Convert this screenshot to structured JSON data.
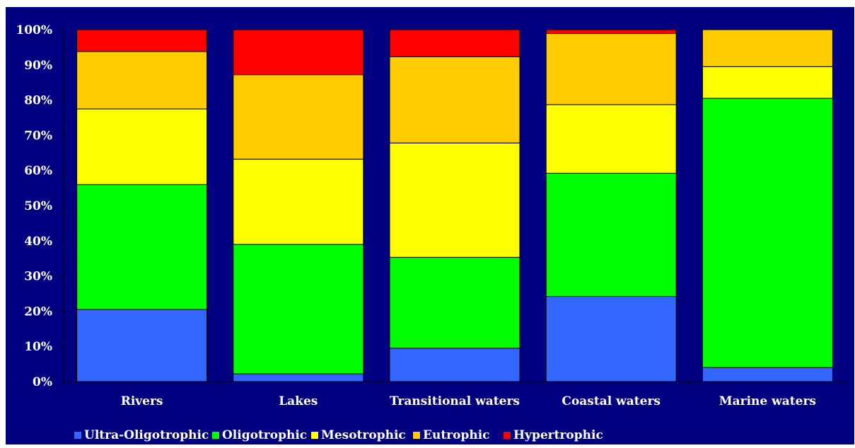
{
  "chart_data": {
    "type": "bar",
    "stacked": true,
    "normalized": true,
    "categories": [
      "Rivers",
      "Lakes",
      "Transitional waters",
      "Coastal waters",
      "Marine waters"
    ],
    "series": [
      {
        "name": "Ultra-Oligotrophic",
        "color": "#3366ff",
        "values": [
          20.5,
          2.2,
          9.5,
          24.2,
          4.0
        ]
      },
      {
        "name": "Oligotrophic",
        "color": "#00ff00",
        "values": [
          35.5,
          36.8,
          25.8,
          35.0,
          76.5
        ]
      },
      {
        "name": "Mesotrophic",
        "color": "#ffff00",
        "values": [
          21.5,
          24.2,
          32.5,
          19.5,
          9.0
        ]
      },
      {
        "name": "Eutrophic",
        "color": "#ffcc00",
        "values": [
          16.3,
          24.0,
          24.5,
          20.2,
          10.5
        ]
      },
      {
        "name": "Hypertrophic",
        "color": "#ff0000",
        "values": [
          6.2,
          12.8,
          7.7,
          1.1,
          0.0
        ]
      }
    ],
    "yticks": [
      "0%",
      "10%",
      "20%",
      "30%",
      "40%",
      "50%",
      "60%",
      "70%",
      "80%",
      "90%",
      "100%"
    ],
    "ylim": [
      0,
      100
    ],
    "legend_position": "bottom",
    "colors": {
      "plot_background": "#000080",
      "text": "#ffffff"
    }
  }
}
